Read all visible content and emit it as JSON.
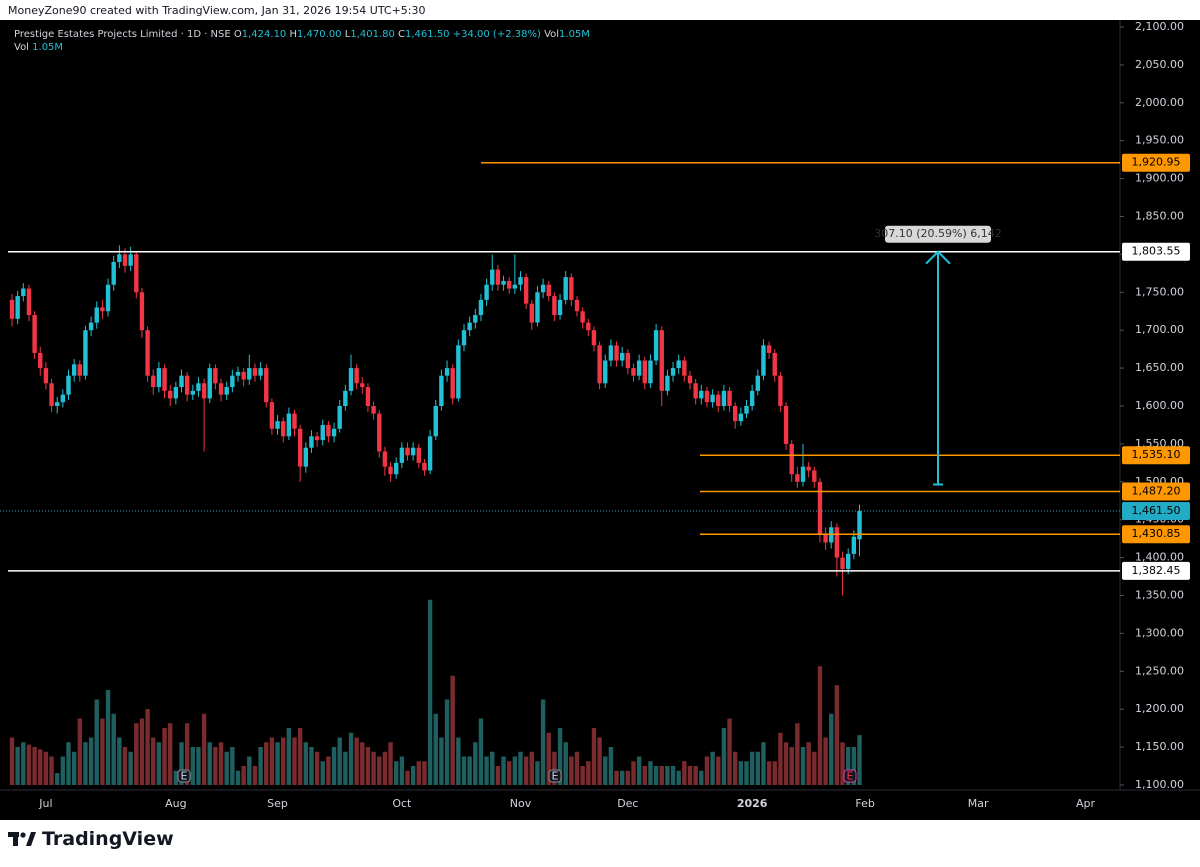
{
  "header": {
    "credit": "MoneyZone90 created with TradingView.com, Jan 31, 2026 19:54 UTC+5:30",
    "symbol": "Prestige Estates Projects Limited · 1D · NSE",
    "ohlc": [
      {
        "label": "O",
        "value": "1,424.10"
      },
      {
        "label": "H",
        "value": "1,470.00"
      },
      {
        "label": "L",
        "value": "1,401.80"
      },
      {
        "label": "C",
        "value": "1,461.50"
      }
    ],
    "change": "+34.00 (+2.38%)",
    "vol_label": "Vol",
    "vol_value": "1.05M"
  },
  "chart_data": {
    "type": "candlestick",
    "categories": [
      null,
      null,
      null,
      null,
      null,
      null,
      "Jul",
      null,
      null,
      null,
      null,
      null,
      null,
      null,
      null,
      null,
      null,
      null,
      null,
      null,
      null,
      null,
      null,
      null,
      null,
      null,
      null,
      null,
      null,
      "Aug",
      null,
      null,
      null,
      null,
      null,
      null,
      null,
      null,
      null,
      null,
      null,
      null,
      null,
      null,
      null,
      null,
      null,
      "Sep",
      null,
      null,
      null,
      null,
      null,
      null,
      null,
      null,
      null,
      null,
      null,
      null,
      null,
      null,
      null,
      null,
      null,
      null,
      null,
      null,
      null,
      "Oct",
      null,
      null,
      null,
      null,
      null,
      null,
      null,
      null,
      null,
      null,
      null,
      null,
      null,
      null,
      null,
      null,
      null,
      null,
      null,
      null,
      "Nov",
      null,
      null,
      null,
      null,
      null,
      null,
      null,
      null,
      null,
      null,
      null,
      null,
      null,
      null,
      null,
      null,
      null,
      null,
      "Dec",
      null,
      null,
      null,
      null,
      null,
      null,
      null,
      null,
      null,
      null,
      null,
      null,
      null,
      null,
      null,
      null,
      null,
      null,
      null,
      null,
      null,
      "2026",
      null,
      null,
      null,
      null,
      null,
      null,
      null,
      null,
      null,
      null,
      null,
      null,
      null,
      null,
      null,
      null,
      null,
      null,
      null,
      "Feb",
      null,
      null,
      null,
      null,
      null,
      null,
      null,
      null,
      null,
      null,
      null,
      null,
      null,
      null,
      null,
      null,
      null,
      null,
      null,
      "Mar",
      null,
      null,
      null,
      null,
      null,
      null,
      null,
      null,
      null,
      null,
      null,
      null,
      null,
      null,
      null,
      null,
      null,
      null,
      "Apr",
      null,
      null,
      null,
      null,
      null,
      null
    ],
    "open": [
      1740,
      1715,
      1745,
      1755,
      1720,
      1670,
      1650,
      1630,
      1600,
      1605,
      1615,
      1640,
      1655,
      1640,
      1700,
      1710,
      1730,
      1725,
      1760,
      1790,
      1800,
      1785,
      1800,
      1750,
      1700,
      1640,
      1625,
      1650,
      1620,
      1610,
      1625,
      1640,
      1615,
      1620,
      1630,
      1610,
      1650,
      1630,
      1615,
      1625,
      1640,
      1645,
      1635,
      1650,
      1640,
      1650,
      1605,
      1570,
      1580,
      1560,
      1590,
      1570,
      1520,
      1545,
      1560,
      1555,
      1575,
      1560,
      1570,
      1600,
      1620,
      1650,
      1630,
      1625,
      1600,
      1590,
      1540,
      1520,
      1510,
      1525,
      1545,
      1535,
      1545,
      1525,
      1515,
      1560,
      1600,
      1640,
      1650,
      1610,
      1680,
      1700,
      1710,
      1720,
      1740,
      1760,
      1780,
      1760,
      1765,
      1755,
      1760,
      1770,
      1735,
      1710,
      1750,
      1760,
      1745,
      1720,
      1740,
      1770,
      1740,
      1725,
      1710,
      1700,
      1680,
      1630,
      1660,
      1680,
      1660,
      1670,
      1650,
      1640,
      1660,
      1630,
      1660,
      1700,
      1620,
      1640,
      1650,
      1660,
      1640,
      1630,
      1610,
      1620,
      1605,
      1615,
      1600,
      1620,
      1600,
      1580,
      1590,
      1600,
      1620,
      1640,
      1680,
      1670,
      1640,
      1600,
      1550,
      1510,
      1500,
      1520,
      1515,
      1500,
      1430,
      1420,
      1440,
      1400,
      1385,
      1405,
      1424.1,
      null,
      null,
      null,
      null,
      null,
      null,
      null,
      null,
      null,
      null,
      null,
      null,
      null,
      null,
      null,
      null,
      null,
      null,
      null,
      null,
      null,
      null,
      null,
      null,
      null,
      null,
      null,
      null,
      null,
      null,
      null,
      null,
      null,
      null,
      null,
      null,
      null,
      null,
      null,
      null,
      null,
      null,
      null,
      null,
      null,
      null
    ],
    "high": [
      1748,
      1752,
      1762,
      1760,
      1725,
      1678,
      1658,
      1636,
      1612,
      1622,
      1648,
      1662,
      1660,
      1706,
      1718,
      1738,
      1740,
      1768,
      1798,
      1812,
      1808,
      1810,
      1804,
      1756,
      1705,
      1648,
      1658,
      1655,
      1628,
      1632,
      1648,
      1645,
      1628,
      1638,
      1636,
      1656,
      1655,
      1636,
      1632,
      1648,
      1652,
      1650,
      1668,
      1656,
      1658,
      1655,
      1610,
      1588,
      1585,
      1598,
      1595,
      1575,
      1552,
      1568,
      1566,
      1582,
      1580,
      1578,
      1608,
      1628,
      1668,
      1655,
      1638,
      1630,
      1606,
      1595,
      1546,
      1526,
      1532,
      1552,
      1552,
      1552,
      1550,
      1530,
      1568,
      1608,
      1648,
      1660,
      1655,
      1688,
      1708,
      1718,
      1728,
      1748,
      1768,
      1800,
      1786,
      1772,
      1770,
      1800,
      1778,
      1775,
      1740,
      1758,
      1768,
      1765,
      1750,
      1748,
      1778,
      1775,
      1745,
      1730,
      1715,
      1705,
      1685,
      1668,
      1688,
      1685,
      1678,
      1675,
      1656,
      1668,
      1665,
      1668,
      1708,
      1705,
      1648,
      1658,
      1668,
      1665,
      1646,
      1636,
      1628,
      1625,
      1622,
      1620,
      1628,
      1625,
      1605,
      1598,
      1608,
      1628,
      1648,
      1688,
      1685,
      1675,
      1645,
      1605,
      1555,
      1520,
      1550,
      1526,
      1520,
      1505,
      1440,
      1448,
      1445,
      1408,
      1412,
      1436,
      1470,
      null,
      null,
      null,
      null,
      null,
      null,
      null,
      null,
      null,
      null,
      null,
      null,
      null,
      null,
      null,
      null,
      null,
      null,
      null,
      null,
      null,
      null,
      null,
      null,
      null,
      null,
      null,
      null,
      null,
      null,
      null,
      null,
      null,
      null,
      null,
      null,
      null,
      null,
      null,
      null,
      null,
      null,
      null,
      null,
      null,
      null
    ],
    "low": [
      1705,
      1708,
      1738,
      1712,
      1662,
      1640,
      1622,
      1592,
      1590,
      1598,
      1608,
      1632,
      1632,
      1635,
      1692,
      1702,
      1715,
      1718,
      1752,
      1782,
      1776,
      1778,
      1742,
      1690,
      1632,
      1615,
      1618,
      1610,
      1600,
      1602,
      1618,
      1606,
      1608,
      1612,
      1540,
      1604,
      1622,
      1606,
      1608,
      1618,
      1632,
      1626,
      1628,
      1632,
      1634,
      1598,
      1562,
      1562,
      1552,
      1555,
      1560,
      1500,
      1512,
      1538,
      1546,
      1548,
      1552,
      1552,
      1565,
      1594,
      1614,
      1622,
      1616,
      1592,
      1582,
      1532,
      1508,
      1500,
      1504,
      1518,
      1528,
      1528,
      1518,
      1508,
      1510,
      1555,
      1594,
      1632,
      1602,
      1606,
      1672,
      1692,
      1702,
      1712,
      1732,
      1752,
      1752,
      1752,
      1748,
      1748,
      1752,
      1728,
      1700,
      1705,
      1742,
      1738,
      1712,
      1714,
      1734,
      1732,
      1718,
      1702,
      1692,
      1672,
      1622,
      1624,
      1652,
      1652,
      1652,
      1642,
      1632,
      1634,
      1622,
      1624,
      1654,
      1600,
      1614,
      1632,
      1642,
      1632,
      1622,
      1602,
      1602,
      1598,
      1598,
      1592,
      1594,
      1592,
      1570,
      1574,
      1584,
      1594,
      1614,
      1634,
      1662,
      1632,
      1592,
      1542,
      1500,
      1492,
      1494,
      1506,
      1492,
      1420,
      1410,
      1412,
      1375,
      1350,
      1378,
      1398,
      1401.8,
      null,
      null,
      null,
      null,
      null,
      null,
      null,
      null,
      null,
      null,
      null,
      null,
      null,
      null,
      null,
      null,
      null,
      null,
      null,
      null,
      null,
      null,
      null,
      null,
      null,
      null,
      null,
      null,
      null,
      null,
      null,
      null,
      null,
      null,
      null,
      null,
      null,
      null,
      null,
      null,
      null,
      null,
      null,
      null,
      null,
      null
    ],
    "close": [
      1715,
      1745,
      1755,
      1720,
      1670,
      1650,
      1630,
      1600,
      1605,
      1615,
      1640,
      1655,
      1640,
      1700,
      1710,
      1730,
      1725,
      1760,
      1790,
      1800,
      1785,
      1800,
      1750,
      1700,
      1640,
      1625,
      1650,
      1620,
      1610,
      1625,
      1640,
      1615,
      1620,
      1630,
      1610,
      1650,
      1630,
      1615,
      1625,
      1640,
      1645,
      1635,
      1650,
      1640,
      1650,
      1605,
      1570,
      1580,
      1560,
      1590,
      1570,
      1520,
      1545,
      1560,
      1555,
      1575,
      1560,
      1570,
      1600,
      1620,
      1650,
      1630,
      1625,
      1600,
      1590,
      1540,
      1520,
      1510,
      1525,
      1545,
      1535,
      1545,
      1525,
      1515,
      1560,
      1600,
      1640,
      1650,
      1610,
      1680,
      1700,
      1710,
      1720,
      1740,
      1760,
      1780,
      1760,
      1765,
      1755,
      1760,
      1770,
      1735,
      1710,
      1750,
      1760,
      1745,
      1720,
      1740,
      1770,
      1740,
      1725,
      1710,
      1700,
      1680,
      1630,
      1660,
      1680,
      1660,
      1670,
      1650,
      1640,
      1660,
      1630,
      1660,
      1700,
      1620,
      1640,
      1650,
      1660,
      1640,
      1630,
      1610,
      1620,
      1605,
      1615,
      1600,
      1620,
      1600,
      1580,
      1590,
      1600,
      1620,
      1640,
      1680,
      1670,
      1640,
      1600,
      1550,
      1510,
      1500,
      1520,
      1515,
      1500,
      1430,
      1420,
      1440,
      1400,
      1385,
      1405,
      1427.5,
      1461.5,
      null,
      null,
      null,
      null,
      null,
      null,
      null,
      null,
      null,
      null,
      null,
      null,
      null,
      null,
      null,
      null,
      null,
      null,
      null,
      null,
      null,
      null,
      null,
      null,
      null,
      null,
      null,
      null,
      null,
      null,
      null,
      null,
      null,
      null,
      null,
      null,
      null,
      null,
      null,
      null,
      null,
      null,
      null,
      null,
      null,
      null
    ],
    "volume": [
      1.0,
      0.8,
      0.9,
      0.85,
      0.8,
      0.75,
      0.7,
      0.6,
      0.25,
      0.6,
      0.9,
      0.7,
      1.4,
      0.9,
      1.0,
      1.8,
      1.4,
      2.0,
      1.5,
      1.0,
      0.8,
      0.7,
      1.3,
      1.4,
      1.6,
      1.0,
      0.9,
      1.2,
      1.3,
      0.3,
      0.9,
      1.3,
      0.8,
      0.8,
      1.5,
      0.9,
      0.8,
      0.9,
      0.7,
      0.8,
      0.3,
      0.4,
      0.6,
      0.4,
      0.8,
      0.9,
      1.0,
      0.9,
      1.0,
      1.2,
      1.0,
      1.2,
      0.9,
      0.8,
      0.7,
      0.5,
      0.6,
      0.8,
      1.0,
      0.7,
      1.1,
      1.0,
      0.9,
      0.8,
      0.7,
      0.6,
      0.7,
      0.9,
      0.5,
      0.6,
      0.3,
      0.4,
      0.5,
      0.5,
      3.9,
      1.5,
      1.0,
      1.8,
      2.3,
      1.0,
      0.6,
      0.6,
      0.9,
      1.4,
      0.6,
      0.7,
      0.4,
      0.6,
      0.5,
      0.6,
      0.7,
      0.6,
      0.7,
      0.5,
      1.8,
      1.1,
      0.7,
      1.2,
      0.9,
      0.6,
      0.7,
      0.4,
      0.5,
      1.2,
      1.0,
      0.6,
      0.8,
      0.3,
      0.3,
      0.3,
      0.5,
      0.6,
      0.4,
      0.5,
      0.4,
      0.4,
      0.4,
      0.4,
      0.3,
      0.5,
      0.4,
      0.4,
      0.3,
      0.6,
      0.7,
      0.6,
      1.2,
      1.4,
      0.7,
      0.5,
      0.5,
      0.7,
      0.7,
      0.9,
      0.5,
      0.5,
      1.1,
      0.9,
      0.8,
      1.3,
      0.8,
      0.9,
      0.7,
      2.5,
      1.0,
      1.5,
      2.1,
      0.9,
      0.8,
      0.8,
      1.05,
      null,
      null,
      null,
      null,
      null,
      null,
      null,
      null,
      null,
      null,
      null,
      null,
      null,
      null,
      null,
      null,
      null,
      null,
      null,
      null,
      null,
      null,
      null,
      null,
      null,
      null,
      null,
      null,
      null,
      null,
      null,
      null,
      null,
      null,
      null,
      null,
      null,
      null,
      null,
      null,
      null,
      null,
      null,
      null,
      null,
      null
    ],
    "up_color": "#22c1d6",
    "down_color": "#f23645",
    "volume_up_color": "#1f5f60",
    "volume_down_color": "#7a2b2e",
    "ylim": [
      1100,
      2100
    ],
    "volume_ylim": [
      0,
      4
    ],
    "yticks": [
      {
        "value": 1100,
        "label": "1,100.00"
      },
      {
        "value": 1150,
        "label": "1,150.00"
      },
      {
        "value": 1200,
        "label": "1,200.00"
      },
      {
        "value": 1250,
        "label": "1,250.00"
      },
      {
        "value": 1300,
        "label": "1,300.00"
      },
      {
        "value": 1350,
        "label": "1,350.00"
      },
      {
        "value": 1400,
        "label": "1,400.00"
      },
      {
        "value": 1450,
        "label": "1,450.00"
      },
      {
        "value": 1500,
        "label": "1,500.00"
      },
      {
        "value": 1550,
        "label": "1,550.00"
      },
      {
        "value": 1600,
        "label": "1,600.00"
      },
      {
        "value": 1650,
        "label": "1,650.00"
      },
      {
        "value": 1700,
        "label": "1,700.00"
      },
      {
        "value": 1750,
        "label": "1,750.00"
      },
      {
        "value": 1800,
        "label": "1,800.00"
      },
      {
        "value": 1850,
        "label": "1,850.00"
      },
      {
        "value": 1900,
        "label": "1,900.00"
      },
      {
        "value": 1950,
        "label": "1,950.00"
      },
      {
        "value": 2000,
        "label": "2,000.00"
      },
      {
        "value": 2050,
        "label": "2,050.00"
      },
      {
        "value": 2100,
        "label": "2,100.00"
      }
    ],
    "levels": [
      {
        "value": 1920.95,
        "label": "1,920.95",
        "color": "#ff9800"
      },
      {
        "value": 1803.55,
        "label": "1,803.55",
        "color": "#ffffff"
      },
      {
        "value": 1535.1,
        "label": "1,535.10",
        "color": "#ff9800"
      },
      {
        "value": 1487.2,
        "label": "1,487.20",
        "color": "#ff9800"
      },
      {
        "value": 1430.85,
        "label": "1,430.85",
        "color": "#ff9800"
      },
      {
        "value": 1382.45,
        "label": "1,382.45",
        "color": "#ffffff"
      }
    ],
    "last_price": {
      "value": 1461.5,
      "label": "1,461.50",
      "color": "#22abc4"
    },
    "measure": {
      "from": 1496.45,
      "to": 1803.55,
      "label": "307.10 (20.59%) 6,142",
      "color": "#22c1d6"
    },
    "earnings_marker": "E"
  },
  "footer": {
    "brand": "TradingView"
  }
}
